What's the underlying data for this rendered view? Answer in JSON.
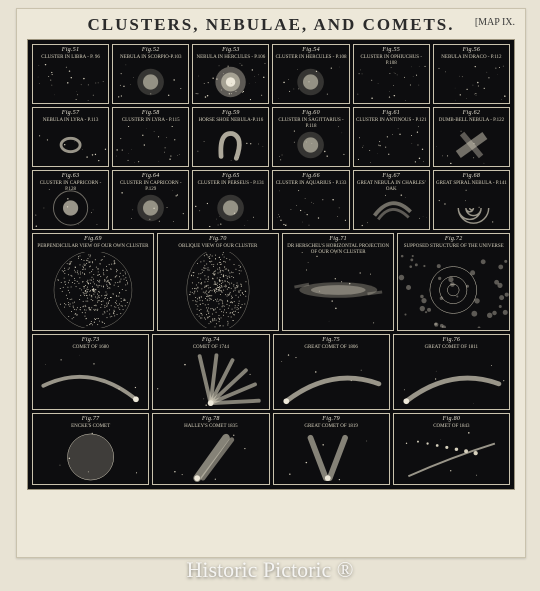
{
  "title": "CLUSTERS, NEBULAE, AND COMETS.",
  "map_tag": "[MAP IX.",
  "watermark": "Historic Pictoric ®",
  "row1": [
    {
      "fig": "Fig.51",
      "cap": "CLUSTER IN LIBRA - P. 96",
      "kind": "dots"
    },
    {
      "fig": "Fig.52",
      "cap": "NEBULA IN SCORPIO-P.103",
      "kind": "fuzz"
    },
    {
      "fig": "Fig.53",
      "cap": "NEBULA IN HERCULES - P.106",
      "kind": "glob"
    },
    {
      "fig": "Fig.54",
      "cap": "CLUSTER IN HERCULES - P.108",
      "kind": "fuzz"
    },
    {
      "fig": "Fig.55",
      "cap": "CLUSTER IN OPHIUCHUS - P.108",
      "kind": "dots"
    },
    {
      "fig": "Fig.56",
      "cap": "NEBULA IN DRACO - P.112",
      "kind": "dots"
    }
  ],
  "row2": [
    {
      "fig": "Fig.57",
      "cap": "NEBULA IN LYRA - P.113",
      "kind": "ring"
    },
    {
      "fig": "Fig.58",
      "cap": "CLUSTER IN LYRA - P.115",
      "kind": "dots"
    },
    {
      "fig": "Fig.59",
      "cap": "HORSE SHOE NEBULA-P.116",
      "kind": "horseshoe"
    },
    {
      "fig": "Fig.60",
      "cap": "CLUSTER IN SAGITTARIUS - P.118",
      "kind": "fuzz"
    },
    {
      "fig": "Fig.61",
      "cap": "CLUSTER IN ANTINOUS - P.121",
      "kind": "dots"
    },
    {
      "fig": "Fig.62",
      "cap": "DUMB-BELL NEBULA - P.122",
      "kind": "dumbbell"
    }
  ],
  "row3": [
    {
      "fig": "Fig.63",
      "cap": "CLUSTER IN CAPRICORN - P.128",
      "kind": "halo"
    },
    {
      "fig": "Fig.64",
      "cap": "CLUSTER IN CAPRICORN - P.129",
      "kind": "fuzz"
    },
    {
      "fig": "Fig.65",
      "cap": "CLUSTER IN PERSEUS - P.131",
      "kind": "fuzz"
    },
    {
      "fig": "Fig.66",
      "cap": "CLUSTER IN AQUARIUS - P.133",
      "kind": "dots"
    },
    {
      "fig": "Fig.67",
      "cap": "GREAT NEBULA IN CHARLES' OAK",
      "kind": "wisp"
    },
    {
      "fig": "Fig.68",
      "cap": "GREAT SPIRAL NEBULA - P.141",
      "kind": "spiral"
    }
  ],
  "row4": [
    {
      "fig": "Fig.69",
      "cap": "PERPENDICULAR VIEW OF OUR OWN CLUSTER",
      "kind": "bigdisc"
    },
    {
      "fig": "Fig.70",
      "cap": "OBLIQUE VIEW OF OUR CLUSTER",
      "kind": "bigoval"
    },
    {
      "fig": "Fig.71",
      "cap": "DR HERSCHEL'S HORIZONTAL PROJECTION OF OUR OWN CLUSTER",
      "kind": "galaxy"
    },
    {
      "fig": "Fig.72",
      "cap": "SUPPOSED STRUCTURE OF THE UNIVERSE",
      "kind": "universe"
    }
  ],
  "row5": [
    {
      "fig": "Fig.73",
      "cap": "COMET OF 1680",
      "kind": "comet-l"
    },
    {
      "fig": "Fig.74",
      "cap": "COMET OF 1744",
      "kind": "fan"
    },
    {
      "fig": "Fig.75",
      "cap": "GREAT COMET OF 1806",
      "kind": "comet-r"
    },
    {
      "fig": "Fig.76",
      "cap": "GREAT COMET OF 1811",
      "kind": "comet-r"
    }
  ],
  "row6": [
    {
      "fig": "Fig.77",
      "cap": "ENCKE'S COMET",
      "kind": "disc"
    },
    {
      "fig": "Fig.78",
      "cap": "HALLEY'S COMET 1835",
      "kind": "comet-u"
    },
    {
      "fig": "Fig.79",
      "cap": "GREAT COMET OF 1819",
      "kind": "comet-u2"
    },
    {
      "fig": "Fig.80",
      "cap": "COMET OF 1843",
      "kind": "comet-thin"
    }
  ],
  "colors": {
    "ink": "#d6d0bd",
    "bg": "#0d0d0f",
    "border": "#c9c2ad",
    "paper": "#ede8d9"
  }
}
